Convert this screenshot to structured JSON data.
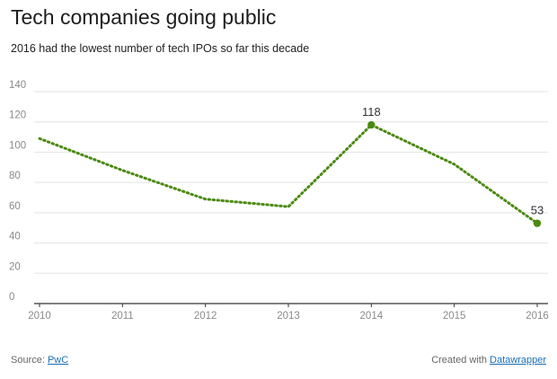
{
  "chart_data": {
    "type": "line",
    "title": "Tech companies going public",
    "subtitle": "2016 had the lowest number of tech IPOs so far this decade",
    "x": [
      2010,
      2011,
      2012,
      2013,
      2014,
      2015,
      2016
    ],
    "series": [
      {
        "values": [
          109,
          88,
          69,
          64,
          118,
          92,
          53
        ]
      }
    ],
    "ylim": [
      0,
      140
    ],
    "yticks": [
      0,
      20,
      40,
      60,
      80,
      100,
      120,
      140
    ],
    "xticks": [
      "2010",
      "2011",
      "2012",
      "2013",
      "2014",
      "2015",
      "2016"
    ],
    "annotations": [
      {
        "x": 2014,
        "label": "118"
      },
      {
        "x": 2016,
        "label": "53"
      }
    ],
    "line_color": "#4a8a10",
    "line_style": "dotted",
    "grid": true
  },
  "footer": {
    "source_label": "Source: ",
    "source_link": "PwC",
    "created_label": "Created with ",
    "created_link": "Datawrapper"
  }
}
